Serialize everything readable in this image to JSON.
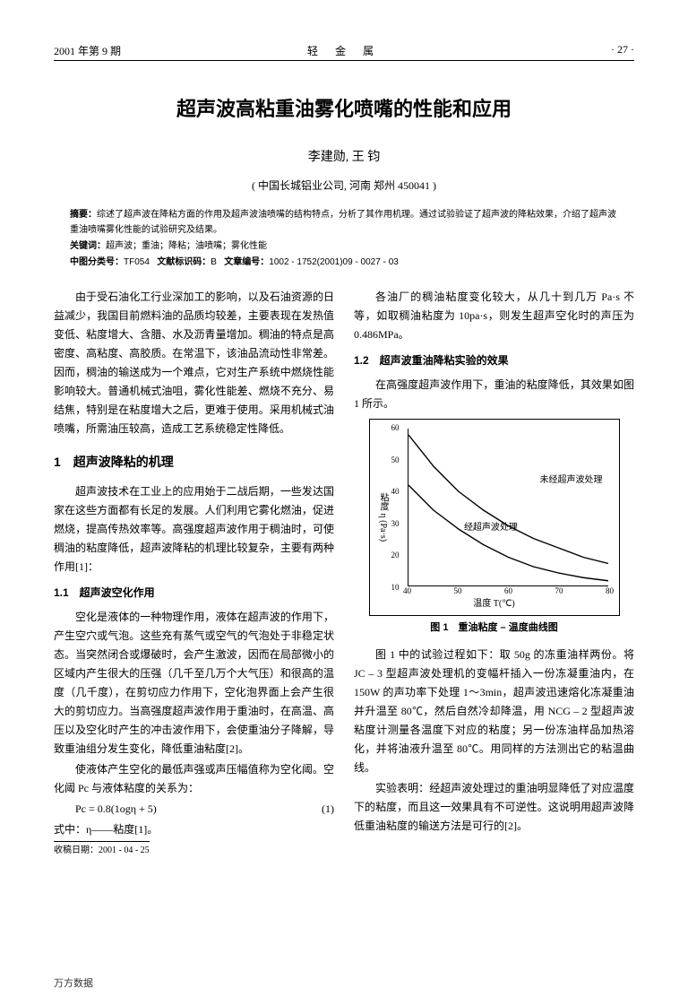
{
  "header": {
    "left": "2001 年第 9 期",
    "center": "轻 金 属",
    "right": "· 27 ·"
  },
  "title": "超声波高粘重油雾化喷嘴的性能和应用",
  "authors": "李建勋, 王 钧",
  "affiliation": "( 中国长城铝业公司, 河南 郑州 450041 )",
  "abstract": {
    "abs_label": "摘要：",
    "abs_text": "综述了超声波在降粘方面的作用及超声波油喷嘴的结构特点，分析了其作用机理。通过试验验证了超声波的降粘效果，介绍了超声波重油喷嘴雾化性能的试验研究及结果。",
    "kw_label": "关键词：",
    "kw_text": "超声波；重油；降粘；油喷嘴；雾化性能",
    "clc_label": "中图分类号：",
    "clc": "TF054",
    "doc_label": "文献标识码：",
    "doc": "B",
    "art_label": "文章编号：",
    "art": "1002 - 1752(2001)09 - 0027 - 03"
  },
  "left_col": {
    "intro": "由于受石油化工行业深加工的影响，以及石油资源的日益减少，我国目前燃料油的品质均较差，主要表现在发热值变低、粘度增大、含腊、水及沥青量增加。稠油的特点是高密度、高粘度、高胶质。在常温下，该油品流动性非常差。因而，稠油的输送成为一个难点，它对生产系统中燃烧性能影响较大。普通机械式油咀，雾化性能差、燃烧不充分、易结焦，特别是在粘度增大之后，更难于使用。采用机械式油喷嘴，所需油压较高，造成工艺系统稳定性降低。",
    "sec1_title": "1　超声波降粘的机理",
    "sec1_p": "超声波技术在工业上的应用始于二战后期，一些发达国家在这些方面都有长足的发展。人们利用它雾化燃油，促进燃烧，提高传热效率等。高强度超声波作用于稠油时，可使稠油的粘度降低，超声波降粘的机理比较复杂，主要有两种作用[1]：",
    "sec11_title": "1.1　超声波空化作用",
    "sec11_p1": "空化是液体的一种物理作用，液体在超声波的作用下，产生空穴或气泡。这些充有蒸气或空气的气泡处于非稳定状态。当突然闭合或爆破时，会产生激波，因而在局部微小的区域内产生很大的压强（几千至几万个大气压）和很高的温度（几千度），在剪切应力作用下，空化泡界面上会产生很大的剪切应力。当高强度超声波作用于重油时，在高温、高压以及空化时产生的冲击波作用下，会使重油分子降解，导致重油组分发生变化，降低重油粘度[2]。",
    "sec11_p2": "使液体产生空化的最低声强或声压幅值称为空化阈。空化阈 Pc 与液体粘度的关系为：",
    "formula": "Pc = 0.8(1ogη + 5)",
    "formula_num": "(1)",
    "formula_note": "式中：η——粘度[1]。",
    "rec_date": "收稿日期：2001 - 04 - 25"
  },
  "right_col": {
    "p1": "各油厂的稠油粘度变化较大，从几十到几万 Pa·s 不等，如取稠油粘度为 10pa·s，则发生超声空化时的声压为 0.486MPa。",
    "sec12_title": "1.2　超声波重油降粘实验的效果",
    "sec12_intro": "在高强度超声波作用下，重油的粘度降低，其效果如图 1 所示。",
    "chart": {
      "type": "line",
      "y_label": "粘度 η (Pa·s)",
      "x_label": "温度 T(℃)",
      "caption": "图 1　重油粘度 – 温度曲线图",
      "y_ticks": [
        10,
        20,
        30,
        40,
        50,
        60
      ],
      "x_ticks": [
        40,
        50,
        60,
        70,
        80
      ],
      "y_range": [
        10,
        60
      ],
      "x_range": [
        40,
        80
      ],
      "curves": {
        "untreated": {
          "label": "未经超声波处理",
          "points": [
            [
              40,
              58
            ],
            [
              45,
              48
            ],
            [
              50,
              40
            ],
            [
              55,
              34
            ],
            [
              60,
              29
            ],
            [
              65,
              25
            ],
            [
              70,
              22
            ],
            [
              75,
              19
            ],
            [
              80,
              17
            ]
          ]
        },
        "treated": {
          "label": "经超声波处理",
          "points": [
            [
              40,
              42
            ],
            [
              45,
              34
            ],
            [
              50,
              28
            ],
            [
              55,
              23
            ],
            [
              60,
              19
            ],
            [
              65,
              16
            ],
            [
              70,
              14
            ],
            [
              75,
              12.5
            ],
            [
              80,
              11.5
            ]
          ]
        }
      },
      "line_color": "#000000",
      "line_width": 1.4,
      "background": "#ffffff"
    },
    "p2": "图 1 中的试验过程如下：取 50g 的冻重油样两份。将 JC – 3 型超声波处理机的变幅杆插入一份冻凝重油内，在 150W 的声功率下处理 1～3min，超声波迅速熔化冻凝重油并升温至 80℃，然后自然冷却降温，用 NCG – 2 型超声波粘度计测量各温度下对应的粘度；另一份冻油样品加热溶化，并将油液升温至 80℃。用同样的方法测出它的粘温曲线。",
    "p3": "实验表明：经超声波处理过的重油明显降低了对应温度下的粘度，而且这一效果具有不可逆性。这说明用超声波降低重油粘度的输送方法是可行的[2]。"
  },
  "footer": "万方数据"
}
